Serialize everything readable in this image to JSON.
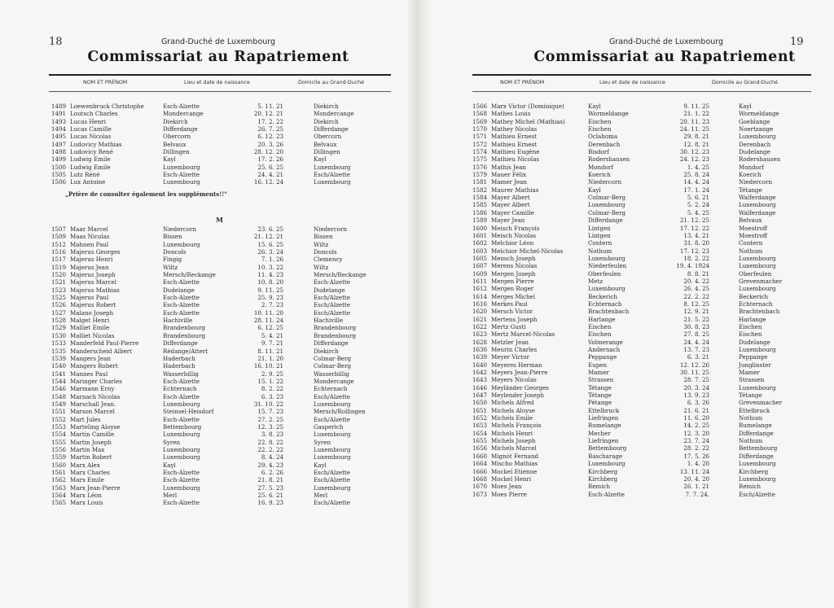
{
  "header": {
    "country": "Grand-Duché de Luxembourg",
    "title": "Commissariat au Rapatriement",
    "columns": [
      "NOM ET PRÉNOM",
      "Lieu et date de naissance",
      "Domicile au Grand-Duché"
    ]
  },
  "left": {
    "page_number": "18",
    "block1": [
      [
        "1489",
        "Loewenbruck Christophe",
        "Esch-Alzette",
        "5. 11. 21",
        "Diekirch"
      ],
      [
        "1491",
        "Loutsch Charles",
        "Mondercange",
        "20. 12. 21",
        "Mondercange"
      ],
      [
        "1493",
        "Lucas Henri",
        "Diekirch",
        "17. 2. 22",
        "Diekirch"
      ],
      [
        "1494",
        "Lucas Camille",
        "Differdange",
        "26. 7. 25",
        "Differdange"
      ],
      [
        "1495",
        "Lucas Nicolas",
        "Obercorn",
        "6. 12. 23",
        "Obercorn"
      ],
      [
        "1497",
        "Ludovicy Mathias",
        "Belvaux",
        "20. 3. 26",
        "Belvaux"
      ],
      [
        "1498",
        "Ludovicy René",
        "Dillingen",
        "28. 12. 20",
        "Dillingen"
      ],
      [
        "1499",
        "Ludwig Emile",
        "Kayl",
        "17. 2. 26",
        "Kayl"
      ],
      [
        "1500",
        "Ludwig Emile",
        "Luxembourg",
        "25. 6. 25",
        "Luxembourg"
      ],
      [
        "1505",
        "Lutz René",
        "Esch-Alzette",
        "24. 4. 21",
        "Esch/Alzette"
      ],
      [
        "1506",
        "Lux Antoine",
        "Luxembourg",
        "16. 12. 24",
        "Luxembourg"
      ]
    ],
    "note": "„Prière de consulter également les suppléments!!\"",
    "section_letter": "M",
    "block2": [
      [
        "1507",
        "Maar Marcel",
        "Niedercorn",
        "23. 6. 25",
        "Niedercorn"
      ],
      [
        "1509",
        "Maas Nicolas",
        "Bissen",
        "21. 12. 21",
        "Bissen"
      ],
      [
        "1512",
        "Mahnen Paul",
        "Luxembourg",
        "15. 6. 25",
        "Wiltz"
      ],
      [
        "1516",
        "Majerus Georges",
        "Doncols",
        "26. 3. 24",
        "Doncols"
      ],
      [
        "1517",
        "Majerus Henri",
        "Fingig",
        "7. 1. 26",
        "Clemency"
      ],
      [
        "1519",
        "Majerus Jean",
        "Wiltz",
        "10. 3. 22",
        "Wiltz"
      ],
      [
        "1520",
        "Majerus Joseph",
        "Mersch/Reckange",
        "11. 4. 23",
        "Mersch/Reckange"
      ],
      [
        "1521",
        "Majerus Marcel",
        "Esch-Alzette",
        "10. 8. 20",
        "Esch-Alzette"
      ],
      [
        "1523",
        "Majerus Mathias",
        "Dudelange",
        "9. 11. 25",
        "Dudelange"
      ],
      [
        "1525",
        "Majerus Paul",
        "Esch-Alzette",
        "25. 9. 23",
        "Esch/Alzette"
      ],
      [
        "1526",
        "Majerus Robert",
        "Esch-Alzette",
        "2. 7. 23",
        "Esch/Alzette"
      ],
      [
        "1527",
        "Malano Joseph",
        "Esch-Alzette",
        "10. 11. 20",
        "Esch/Alzette"
      ],
      [
        "1528",
        "Malget Henri",
        "Hachiville",
        "28. 11. 24",
        "Hachiville"
      ],
      [
        "1529",
        "Malliet Emile",
        "Brandenbourg",
        "6. 12. 25",
        "Brandenbourg"
      ],
      [
        "1530",
        "Malliet Nicolas",
        "Brandenbourg",
        "5. 4. 21",
        "Brandenbourg"
      ],
      [
        "1533",
        "Manderfeld Paul-Pierre",
        "Differdange",
        "9. 7. 21",
        "Differdange"
      ],
      [
        "1535",
        "Manderscheid Albert",
        "Rédange/Attert",
        "8. 11. 21",
        "Diekirch"
      ],
      [
        "1539",
        "Mangers Jean",
        "Haderbach",
        "21. 1. 20",
        "Colmar-Berg"
      ],
      [
        "1540",
        "Mangers Robert",
        "Haderbach",
        "16. 10. 21",
        "Colmar-Berg"
      ],
      [
        "1541",
        "Mannes Paul",
        "Wasserbillig",
        "2. 9. 25",
        "Wasserbillig"
      ],
      [
        "1544",
        "Maringer Charles",
        "Esch-Alzette",
        "15. 1. 22",
        "Mondercange"
      ],
      [
        "1546",
        "Marmann Erny",
        "Echternach",
        "8. 2. 22",
        "Echternach"
      ],
      [
        "1548",
        "Marnach Nicolas",
        "Esch-Alzette",
        "6. 3. 23",
        "Esch/Alzette"
      ],
      [
        "1549",
        "Marschall Jean.",
        "Luxembourg",
        "31. 10. 22",
        "Luxembourg"
      ],
      [
        "1551",
        "Marson Marcel",
        "Steinsel-Heisdorf",
        "15. 7. 23",
        "Mersch/Rollingen"
      ],
      [
        "1552",
        "Mart Jules",
        "Esch-Alzette",
        "27. 2. 25",
        "Esch/Alzette"
      ],
      [
        "1553",
        "Marteling Aloyse",
        "Bettembourg",
        "12. 3. 25",
        "Gasperich"
      ],
      [
        "1554",
        "Martin Camille",
        "Luxembourg",
        "3. 8. 23",
        "Luxembourg"
      ],
      [
        "1555",
        "Martin Joseph",
        "Syren",
        "22. 8. 22",
        "Syren"
      ],
      [
        "1556",
        "Martin Max",
        "Luxembourg",
        "22. 2. 22",
        "Luxembourg"
      ],
      [
        "1559",
        "Martin Robert",
        "Luxembourg",
        "8. 4. 24",
        "Luxembourg"
      ],
      [
        "1560",
        "Marx Alex",
        "Kayl",
        "29. 4. 23",
        "Kayl"
      ],
      [
        "1561",
        "Marx Charles",
        "Esch-Alzette",
        "6. 2. 26",
        "Esch/Alzette"
      ],
      [
        "1562",
        "Marx Emile",
        "Esch-Alzette",
        "21. 8. 21",
        "Esch/Alzette"
      ],
      [
        "1563",
        "Marx Jean-Pierre",
        "Luxembourg",
        "27. 5. 23",
        "Luxembourg"
      ],
      [
        "1564",
        "Marx Léon",
        "Merl",
        "25. 6. 21",
        "Merl"
      ],
      [
        "1565",
        "Marx Louis",
        "Esch-Alzette",
        "16. 9. 23",
        "Esch/Alzette"
      ]
    ]
  },
  "right": {
    "page_number": "19",
    "rows": [
      [
        "1566",
        "Marx Victor (Dominique)",
        "Kayl",
        "9. 11. 25",
        "Kayl"
      ],
      [
        "1568",
        "Mathes Louis",
        "Wormeldange",
        "21. 1. 22",
        "Wormeldange"
      ],
      [
        "1569",
        "Mathey Michel (Mathias)",
        "Eischen",
        "20. 11. 23",
        "Goeblange"
      ],
      [
        "1570",
        "Mathey Nicolas",
        "Eischen",
        "24. 11. 25",
        "Noertzange"
      ],
      [
        "1571",
        "Mathieu Ernest",
        "Oclahoma",
        "29. 8. 21",
        "Luxembourg"
      ],
      [
        "1572",
        "Mathieu Ernest",
        "Derenbach",
        "12. 8. 21",
        "Derenbach"
      ],
      [
        "1574",
        "Mathieu Eugène",
        "Bisdorf",
        "30. 12. 23",
        "Dudelange"
      ],
      [
        "1575",
        "Mathieu Nicolas",
        "Rodershausen",
        "24. 12. 23",
        "Rodershausen"
      ],
      [
        "1576",
        "Mathis Jean",
        "Mondorf",
        "1. 4. 25",
        "Mondorf"
      ],
      [
        "1579",
        "Mauer Félix",
        "Koerich",
        "25. 8. 24",
        "Koerich"
      ],
      [
        "1581",
        "Mamer Jean",
        "Niedercorn",
        "14. 4. 24",
        "Niedercorn"
      ],
      [
        "1582",
        "Maurer Mathias",
        "Kayl",
        "17. 1. 24",
        "Tétange"
      ],
      [
        "1584",
        "Mayer Albert",
        "Colmar-Berg",
        "5. 6. 21",
        "Walferdange"
      ],
      [
        "1585",
        "Mayer Albert",
        "Luxembourg",
        "5. 2. 24",
        "Luxembourg"
      ],
      [
        "1586",
        "Mayer Camille",
        "Colmar-Berg",
        "5. 4. 25",
        "Walferdange"
      ],
      [
        "1589",
        "Mayer Jean",
        "Differdange",
        "21. 12. 25",
        "Belvaux"
      ],
      [
        "1600",
        "Meisch François",
        "Lintgen",
        "17. 12. 22",
        "Moestroff"
      ],
      [
        "1601",
        "Meisch Nicolas",
        "Lintgen",
        "13. 4. 21",
        "Moestroff"
      ],
      [
        "1602",
        "Melchior Léon",
        "Contern",
        "31. 8. 20",
        "Contern"
      ],
      [
        "1603",
        "Melchior Michel-Nicolas",
        "Nothum",
        "17. 12. 23",
        "Nothum"
      ],
      [
        "1605",
        "Mensch Joseph",
        "Luxembourg",
        "18. 2. 22",
        "Luxembourg"
      ],
      [
        "1607",
        "Merens Nicolas",
        "Niederfeulen",
        "19. 4. 1924",
        "Luxembourg"
      ],
      [
        "1609",
        "Mergen Joseph",
        "Oberfeulen",
        "8. 8. 21",
        "Oberfeulen"
      ],
      [
        "1611",
        "Mergen Pierre",
        "Metz",
        "20. 4. 22",
        "Grevenmacher"
      ],
      [
        "1612",
        "Mergen Roger",
        "Luxembourg",
        "26. 4. 25",
        "Luxembourg"
      ],
      [
        "1614",
        "Merges Michel",
        "Beckerich",
        "22. 2. 22",
        "Beckerich"
      ],
      [
        "1616",
        "Merkes Paul",
        "Echternach",
        "8. 12. 25",
        "Echternach"
      ],
      [
        "1620",
        "Mersch Victor",
        "Brachtenbach",
        "12. 9. 21",
        "Brachtenbach"
      ],
      [
        "1621",
        "Mertens Joseph",
        "Harlange",
        "21. 5. 22",
        "Harlange"
      ],
      [
        "1622",
        "Mertz Gusti",
        "Eischen",
        "30. 8. 23",
        "Eischen"
      ],
      [
        "1623",
        "Mertz Marcel-Nicolas",
        "Eischen",
        "27. 8. 25",
        "Eischen"
      ],
      [
        "1628",
        "Metzler Jean",
        "Volmerange",
        "24. 4. 24",
        "Dudelange"
      ],
      [
        "1630",
        "Meurin Charles",
        "Andernach",
        "13. 7. 23",
        "Luxembourg"
      ],
      [
        "1639",
        "Meyer Victor",
        "Peppange",
        "6. 3. 21",
        "Peppange"
      ],
      [
        "1640",
        "Meyeres Herman",
        "Eupen",
        "12. 12. 26",
        "Junglinster"
      ],
      [
        "1642",
        "Meyers Jean-Pierre",
        "Mamer",
        "30. 11. 25",
        "Mamer"
      ],
      [
        "1643",
        "Meyers Nicolas",
        "Strassen",
        "28. 7. 25",
        "Strassen"
      ],
      [
        "1646",
        "Meyländer Georges",
        "Tétange",
        "20. 3. 24",
        "Luxembourg"
      ],
      [
        "1647",
        "Meylender Joseph",
        "Tétange",
        "13. 9. 23",
        "Tétange"
      ],
      [
        "1650",
        "Michels Alfred",
        "Pétange",
        "6. 3. 26",
        "Grevenmacher"
      ],
      [
        "1651",
        "Michels Aloyse",
        "Ettelbruck",
        "21. 6. 21",
        "Ettelbruck"
      ],
      [
        "1652",
        "Michels Emile",
        "Liefringen",
        "11. 6. 20",
        "Nothum"
      ],
      [
        "1653",
        "Michels François",
        "Rumelange",
        "14. 2. 25",
        "Rumelange"
      ],
      [
        "1654",
        "Michels Henri",
        "Mecher",
        "12. 3. 20",
        "Differdange"
      ],
      [
        "1655",
        "Michels Joseph",
        "Liefringen",
        "23. 7. 24",
        "Nothum"
      ],
      [
        "1656",
        "Michels Marcel",
        "Bettembourg",
        "28. 2. 22",
        "Bettembourg"
      ],
      [
        "1660",
        "Mignot Fernand",
        "Bascharage",
        "17. 5. 26",
        "Differdange"
      ],
      [
        "1664",
        "Mischo Mathias",
        "Luxembourg",
        "1. 4. 20",
        "Luxembourg"
      ],
      [
        "1666",
        "Mockel Etienne",
        "Kirchberg",
        "13. 11. 24",
        "Kirchberg"
      ],
      [
        "1668",
        "Mockel Henri",
        "Kirchberg",
        "20. 4. 20",
        "Luxembourg"
      ],
      [
        "1670",
        "Moes Jean",
        "Remich",
        "26. 1. 21",
        "Remich"
      ],
      [
        "1673",
        "Moes Pierre",
        "Esch-Alzette",
        "7. 7. 24.",
        "Esch/Alzette"
      ]
    ]
  }
}
